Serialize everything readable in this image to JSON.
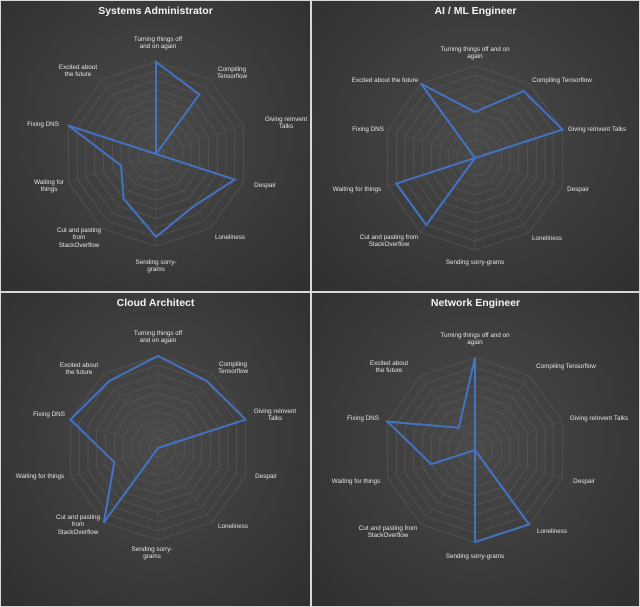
{
  "charts": [
    {
      "title": "Systems Administrator",
      "categories": [
        "Turning things off and on again",
        "Compiling Tensorflow",
        "Giving reInvent Talks",
        "Despair",
        "Loneliness",
        "Sending sorry-grams",
        "Cut and pasting from StackOverflow",
        "Waiting for things",
        "Fixing DNS",
        "Excited about the future"
      ],
      "values": [
        10,
        8,
        0,
        9,
        7,
        9,
        6,
        4,
        10,
        0
      ]
    },
    {
      "title": "AI / ML Engineer",
      "categories": [
        "Turning things off and on again",
        "Compiling Tensorflow",
        "Giving reInvent Talks",
        "Despair",
        "Loneliness",
        "Sending sorry-grams",
        "Cut and pasting from StackOverflow",
        "Waiting for things",
        "Fixing DNS",
        "Excited about the future"
      ],
      "values": [
        5,
        9,
        10,
        0,
        0,
        0,
        9,
        9,
        0,
        10
      ]
    },
    {
      "title": "Cloud Architect",
      "categories": [
        "Turning things off and on again",
        "Compiling Tensorflow",
        "Giving reInvent Talks",
        "Despair",
        "Loneliness",
        "Sending sorry-grams",
        "Cut and pasting from StackOverflow",
        "Waiting for things",
        "Fixing DNS",
        "Excited about the future"
      ],
      "values": [
        10,
        9,
        10,
        0,
        0,
        0,
        10,
        5,
        10,
        9
      ]
    },
    {
      "title": "Network Engineer",
      "categories": [
        "Turning things off and on again",
        "Compiling Tensorflow",
        "Giving reInvent Talks",
        "Despair",
        "Loneliness",
        "Sending sorry-grams",
        "Cut and pasting from StackOverflow",
        "Waiting for things",
        "Fixing DNS",
        "Excited about the future"
      ],
      "values": [
        10,
        0,
        0,
        0,
        10,
        10,
        0,
        5,
        10,
        3
      ]
    }
  ],
  "chart_data": [
    {
      "type": "radar",
      "title": "Systems Administrator",
      "categories": [
        "Turning things off and on again",
        "Compiling Tensorflow",
        "Giving reInvent Talks",
        "Despair",
        "Loneliness",
        "Sending sorry-grams",
        "Cut and pasting from StackOverflow",
        "Waiting for things",
        "Fixing DNS",
        "Excited about the future"
      ],
      "values": [
        10,
        8,
        0,
        9,
        7,
        9,
        6,
        4,
        10,
        0
      ],
      "rmax": 10,
      "grid": true,
      "line_color": "#4472c4"
    },
    {
      "type": "radar",
      "title": "AI / ML Engineer",
      "categories": [
        "Turning things off and on again",
        "Compiling Tensorflow",
        "Giving reInvent Talks",
        "Despair",
        "Loneliness",
        "Sending sorry-grams",
        "Cut and pasting from StackOverflow",
        "Waiting for things",
        "Fixing DNS",
        "Excited about the future"
      ],
      "values": [
        5,
        9,
        10,
        0,
        0,
        0,
        9,
        9,
        0,
        10
      ],
      "rmax": 10,
      "grid": true,
      "line_color": "#4472c4"
    },
    {
      "type": "radar",
      "title": "Cloud Architect",
      "categories": [
        "Turning things off and on again",
        "Compiling Tensorflow",
        "Giving reInvent Talks",
        "Despair",
        "Loneliness",
        "Sending sorry-grams",
        "Cut and pasting from StackOverflow",
        "Waiting for things",
        "Fixing DNS",
        "Excited about the future"
      ],
      "values": [
        10,
        9,
        10,
        0,
        0,
        0,
        10,
        5,
        10,
        9
      ],
      "rmax": 10,
      "grid": true,
      "line_color": "#4472c4"
    },
    {
      "type": "radar",
      "title": "Network Engineer",
      "categories": [
        "Turning things off and on again",
        "Compiling Tensorflow",
        "Giving reInvent Talks",
        "Despair",
        "Loneliness",
        "Sending sorry-grams",
        "Cut and pasting from StackOverflow",
        "Waiting for things",
        "Fixing DNS",
        "Excited about the future"
      ],
      "values": [
        10,
        0,
        0,
        0,
        10,
        10,
        0,
        5,
        10,
        3
      ],
      "rmax": 10,
      "grid": true,
      "line_color": "#4472c4"
    }
  ]
}
